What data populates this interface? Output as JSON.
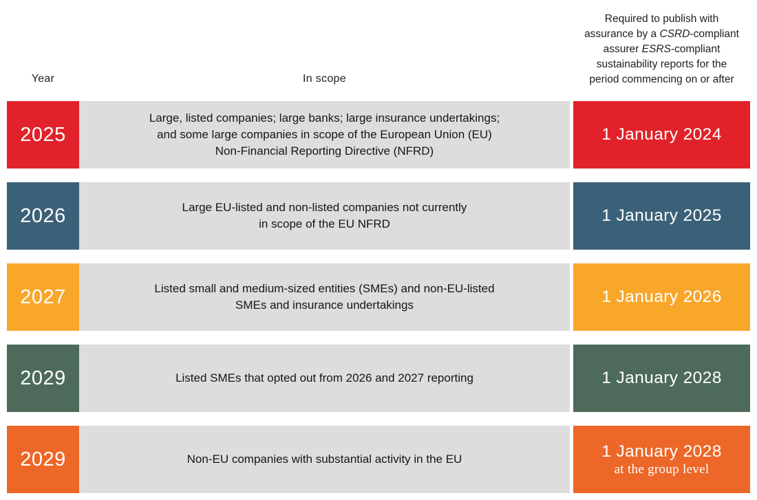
{
  "table": {
    "year_column_label": "Year",
    "scope_column_label": "In scope",
    "assurance_header_lines": [
      [
        {
          "text": "Required to publish with",
          "italic": false
        }
      ],
      [
        {
          "text": "assurance by a ",
          "italic": false
        },
        {
          "text": "CSRD",
          "italic": true
        },
        {
          "text": "-compliant",
          "italic": false
        }
      ],
      [
        {
          "text": "assurer ",
          "italic": false
        },
        {
          "text": "ESRS",
          "italic": true
        },
        {
          "text": "-compliant",
          "italic": false
        }
      ],
      [
        {
          "text": "sustainability reports for the",
          "italic": false
        }
      ],
      [
        {
          "text": "period commencing on or after",
          "italic": false
        }
      ]
    ],
    "rows": [
      {
        "year": "2025",
        "accent_color": "#E1222A",
        "scope_lines": [
          "Large, listed companies; large banks; large insurance undertakings;",
          "and some large companies in scope of the European Union (EU)",
          "Non-Financial Reporting Directive (NFRD)"
        ],
        "date": "1 January 2024",
        "date_note": ""
      },
      {
        "year": "2026",
        "accent_color": "#3B6178",
        "scope_lines": [
          "Large EU-listed and non-listed companies not currently",
          "in scope of the EU NFRD"
        ],
        "date": "1 January 2025",
        "date_note": ""
      },
      {
        "year": "2027",
        "accent_color": "#F8A72B",
        "scope_lines": [
          "Listed small and medium-sized entities (SMEs) and non-EU-listed",
          "SMEs and insurance undertakings"
        ],
        "date": "1 January 2026",
        "date_note": ""
      },
      {
        "year": "2029",
        "accent_color": "#4D6A5A",
        "scope_lines": [
          "Listed SMEs that opted out from 2026 and 2027 reporting"
        ],
        "date": "1 January 2028",
        "date_note": ""
      },
      {
        "year": "2029",
        "accent_color": "#EC6728",
        "scope_lines": [
          "Non-EU companies with substantial activity in the EU"
        ],
        "date": "1 January 2028",
        "date_note": "at the group level"
      }
    ],
    "colors": {
      "scope_bg": "#DDDDDD",
      "text_dark": "#1E1E1E",
      "text_light": "#FFFFFF"
    }
  }
}
